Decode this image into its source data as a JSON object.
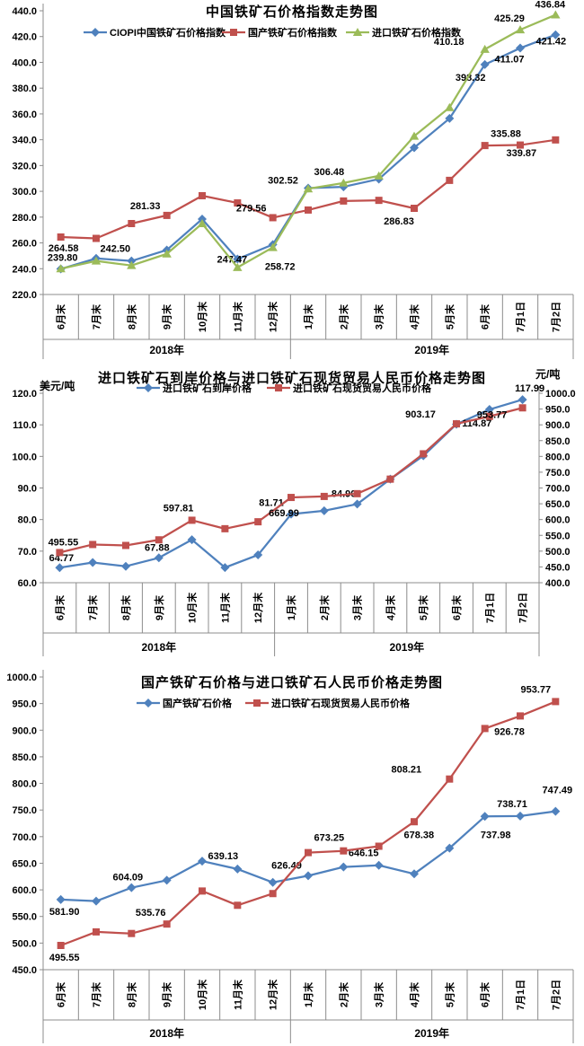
{
  "page": {
    "background": "#FFFFFF"
  },
  "colors": {
    "blue": "#4F81BD",
    "red": "#C0504D",
    "green": "#9BBB59",
    "axis_gray": "#8C8C8C"
  },
  "chart_data": [
    {
      "type": "line",
      "title": "中国铁矿石价格指数走势图",
      "legend_position": "top",
      "grid": false,
      "ylim": [
        220,
        440
      ],
      "ytick": 20,
      "categories": [
        "6月末",
        "7月末",
        "8月末",
        "9月末",
        "10月末",
        "11月末",
        "12月末",
        "1月末",
        "2月末",
        "3月末",
        "4月末",
        "5月末",
        "6月末",
        "7月1日",
        "7月2日"
      ],
      "year_groups": [
        {
          "label": "2018年",
          "span": 7
        },
        {
          "label": "2019年",
          "span": 8
        }
      ],
      "series": [
        {
          "id": "ciopi_composite_index",
          "name": "CIOPI中国铁矿石价格指数",
          "color": "#4F81BD",
          "marker": "diamond",
          "axis": "left",
          "values": [
            239.8,
            248.0,
            246.0,
            254.5,
            278.5,
            247.47,
            258.72,
            302.52,
            303.5,
            309.5,
            333.8,
            356.5,
            398.32,
            411.07,
            421.42
          ],
          "point_labels": [
            {
              "i": 0,
              "text": "239.80",
              "dx": 2,
              "dy": -9
            },
            {
              "i": 5,
              "text": "247.47",
              "dx": -6,
              "dy": 4
            },
            {
              "i": 6,
              "text": "258.72",
              "dx": 8,
              "dy": 28
            },
            {
              "i": 7,
              "text": "302.52",
              "dx": -28,
              "dy": -5
            },
            {
              "i": 12,
              "text": "398.32",
              "dx": -16,
              "dy": 18
            },
            {
              "i": 13,
              "text": "411.07",
              "dx": -12,
              "dy": 16
            },
            {
              "i": 14,
              "text": "421.42",
              "dx": -5,
              "dy": 11
            }
          ]
        },
        {
          "id": "domestic_ore_index",
          "name": "国产铁矿石价格指数",
          "color": "#C0504D",
          "marker": "square",
          "axis": "left",
          "values": [
            264.58,
            263.5,
            275.0,
            281.33,
            296.6,
            291.0,
            279.56,
            285.5,
            292.5,
            293.0,
            286.83,
            308.5,
            335.5,
            335.88,
            339.87
          ],
          "point_labels": [
            {
              "i": 0,
              "text": "264.58",
              "dx": 3,
              "dy": 16
            },
            {
              "i": 3,
              "text": "281.33",
              "dx": -24,
              "dy": -7
            },
            {
              "i": 6,
              "text": "279.56",
              "dx": -24,
              "dy": -7
            },
            {
              "i": 10,
              "text": "286.83",
              "dx": -17,
              "dy": 18
            },
            {
              "i": 13,
              "text": "335.88",
              "dx": -16,
              "dy": -9
            },
            {
              "i": 14,
              "text": "339.87",
              "dx": -38,
              "dy": 18
            }
          ]
        },
        {
          "id": "imported_ore_index",
          "name": "进口铁矿石价格指数",
          "color": "#9BBB59",
          "marker": "triangle",
          "axis": "left",
          "values": [
            240.0,
            246.0,
            242.5,
            251.5,
            275.0,
            241.0,
            256.5,
            302.0,
            306.48,
            312.0,
            342.8,
            365.0,
            410.18,
            425.29,
            436.84
          ],
          "point_labels": [
            {
              "i": 2,
              "text": "242.50",
              "dx": -18,
              "dy": -15
            },
            {
              "i": 8,
              "text": "306.48",
              "dx": -16,
              "dy": -9
            },
            {
              "i": 12,
              "text": "410.18",
              "dx": -40,
              "dy": -5
            },
            {
              "i": 13,
              "text": "425.29",
              "dx": -12,
              "dy": -9
            },
            {
              "i": 14,
              "text": "436.84",
              "dx": -6,
              "dy": -8
            }
          ]
        }
      ]
    },
    {
      "type": "line",
      "title": "进口铁矿石到岸价格与进口铁矿石现货贸易人民币价格走势图",
      "ylabel_left": "美元/吨",
      "ylabel_right": "元/吨",
      "legend_position": "top",
      "grid": false,
      "ylim": [
        60,
        120
      ],
      "ytick": 10,
      "ylim_right": [
        400,
        1000
      ],
      "ytick_right": 50,
      "categories": [
        "6月末",
        "7月末",
        "8月末",
        "9月末",
        "10月末",
        "11月末",
        "12月末",
        "1月末",
        "2月末",
        "3月末",
        "4月末",
        "5月末",
        "6月末",
        "7月1日",
        "7月2日"
      ],
      "year_groups": [
        {
          "label": "2018年",
          "span": 7
        },
        {
          "label": "2019年",
          "span": 8
        }
      ],
      "series": [
        {
          "id": "import_cif_price",
          "name": "进口铁矿石到岸价格",
          "color": "#4F81BD",
          "marker": "diamond",
          "axis": "left",
          "values": [
            64.77,
            66.4,
            65.2,
            67.88,
            73.6,
            64.8,
            68.8,
            81.71,
            82.8,
            84.9,
            92.8,
            100.2,
            110.2,
            114.87,
            117.99
          ],
          "point_labels": [
            {
              "i": 0,
              "text": "64.77",
              "dx": 2,
              "dy": -7
            },
            {
              "i": 3,
              "text": "67.88",
              "dx": -2,
              "dy": -8
            },
            {
              "i": 7,
              "text": "81.71",
              "dx": -22,
              "dy": -9
            },
            {
              "i": 9,
              "text": "84.90",
              "dx": -15,
              "dy": -8
            },
            {
              "i": 13,
              "text": "114.87",
              "dx": -14,
              "dy": 19
            },
            {
              "i": 14,
              "text": "117.99",
              "dx": 8,
              "dy": -9
            }
          ]
        },
        {
          "id": "import_spot_rmb_price",
          "name": "进口铁矿石现货贸易人民币价格",
          "color": "#C0504D",
          "marker": "square",
          "axis": "right",
          "values": [
            495.55,
            521.0,
            518.0,
            535.76,
            597.81,
            571.0,
            593.0,
            669.99,
            673.25,
            682.0,
            728.0,
            808.21,
            903.17,
            926.78,
            953.77
          ],
          "point_labels": [
            {
              "i": 0,
              "text": "495.55",
              "dx": 4,
              "dy": -8
            },
            {
              "i": 4,
              "text": "597.81",
              "dx": -15,
              "dy": -10
            },
            {
              "i": 7,
              "text": "669.99",
              "dx": -8,
              "dy": 21
            },
            {
              "i": 12,
              "text": "903.17",
              "dx": -40,
              "dy": -7
            },
            {
              "i": 14,
              "text": "953.77",
              "dx": -34,
              "dy": 11
            }
          ]
        }
      ]
    },
    {
      "type": "line",
      "title": "国产铁矿石价格与进口铁矿石人民币价格走势图",
      "legend_position": "top",
      "grid": false,
      "ylim": [
        450,
        1000
      ],
      "ytick": 50,
      "categories": [
        "6月末",
        "7月末",
        "8月末",
        "9月末",
        "10月末",
        "11月末",
        "12月末",
        "1月末",
        "2月末",
        "3月末",
        "4月末",
        "5月末",
        "6月末",
        "7月1日",
        "7月2日"
      ],
      "year_groups": [
        {
          "label": "2018年",
          "span": 7
        },
        {
          "label": "2019年",
          "span": 8
        }
      ],
      "series": [
        {
          "id": "domestic_ore_price",
          "name": "国产铁矿石价格",
          "color": "#4F81BD",
          "marker": "diamond",
          "axis": "left",
          "values": [
            581.9,
            578.8,
            604.09,
            618.0,
            654.0,
            639.13,
            614.0,
            626.49,
            643.0,
            646.15,
            630.0,
            678.38,
            737.98,
            738.71,
            747.49
          ],
          "point_labels": [
            {
              "i": 0,
              "text": "581.90",
              "dx": 4,
              "dy": 17
            },
            {
              "i": 2,
              "text": "604.09",
              "dx": -4,
              "dy": -8
            },
            {
              "i": 5,
              "text": "639.13",
              "dx": -16,
              "dy": -11
            },
            {
              "i": 7,
              "text": "626.49",
              "dx": -24,
              "dy": -8
            },
            {
              "i": 9,
              "text": "646.15",
              "dx": -17,
              "dy": -10
            },
            {
              "i": 11,
              "text": "678.38",
              "dx": -34,
              "dy": -11
            },
            {
              "i": 12,
              "text": "737.98",
              "dx": 12,
              "dy": 24
            },
            {
              "i": 13,
              "text": "738.71",
              "dx": -9,
              "dy": -10
            },
            {
              "i": 14,
              "text": "747.49",
              "dx": 2,
              "dy": -20
            }
          ]
        },
        {
          "id": "import_spot_rmb_price",
          "name": "进口铁矿石现货贸易人民币价格",
          "color": "#C0504D",
          "marker": "square",
          "axis": "left",
          "values": [
            495.55,
            521.0,
            518.0,
            535.76,
            597.81,
            571.0,
            593.0,
            669.99,
            673.25,
            682.0,
            728.0,
            808.21,
            903.17,
            926.78,
            953.77
          ],
          "point_labels": [
            {
              "i": 0,
              "text": "495.55",
              "dx": 4,
              "dy": 17
            },
            {
              "i": 3,
              "text": "535.76",
              "dx": -18,
              "dy": -9
            },
            {
              "i": 8,
              "text": "673.25",
              "dx": -16,
              "dy": -11
            },
            {
              "i": 11,
              "text": "808.21",
              "dx": -48,
              "dy": -7
            },
            {
              "i": 13,
              "text": "926.78",
              "dx": -12,
              "dy": 21
            },
            {
              "i": 14,
              "text": "953.77",
              "dx": -22,
              "dy": -10
            }
          ]
        }
      ]
    }
  ]
}
